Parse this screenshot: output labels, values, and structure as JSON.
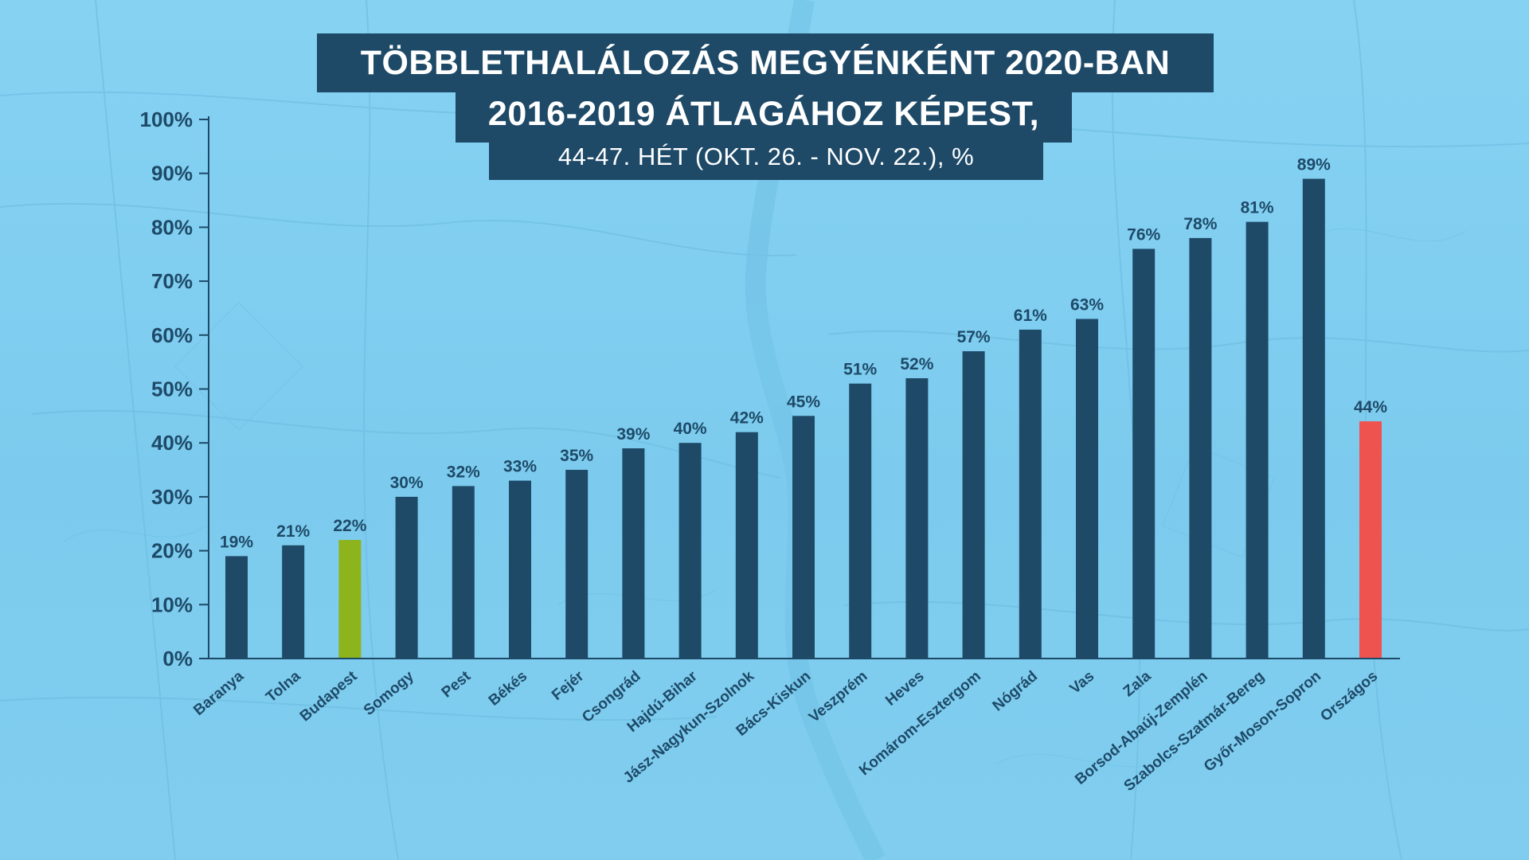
{
  "title": {
    "line1": "TÖBBLETHALÁLOZÁS MEGYÉNKÉNT 2020-BAN",
    "line2": "2016-2019 ÁTLAGÁHOZ KÉPEST,",
    "line3": "44-47. HÉT (OKT. 26. - NOV. 22.), %"
  },
  "colors": {
    "background": "#7ecdf0",
    "bar_default": "#1e4a68",
    "bar_budapest": "#8db41d",
    "bar_national": "#ef5350",
    "text": "#1e4a68",
    "axis": "#1e4a68"
  },
  "chart_data": {
    "type": "bar",
    "title": "TÖBBLETHALÁLOZÁS MEGYÉNKÉNT 2020-BAN 2016-2019 ÁTLAGÁHOZ KÉPEST, 44-47. HÉT (OKT. 26. - NOV. 22.), %",
    "categories": [
      "Baranya",
      "Tolna",
      "Budapest",
      "Somogy",
      "Pest",
      "Békés",
      "Fejér",
      "Csongrád",
      "Hajdú-Bihar",
      "Jász-Nagykun-Szolnok",
      "Bács-Kiskun",
      "Veszprém",
      "Heves",
      "Komárom-Esztergom",
      "Nógrád",
      "Vas",
      "Zala",
      "Borsod-Abaúj-Zemplén",
      "Szabolcs-Szatmár-Bereg",
      "Győr-Moson-Sopron",
      "Országos"
    ],
    "values": [
      19,
      21,
      22,
      30,
      32,
      33,
      35,
      39,
      40,
      42,
      45,
      51,
      52,
      57,
      61,
      63,
      76,
      78,
      81,
      89,
      44
    ],
    "value_labels": [
      "19%",
      "21%",
      "22%",
      "30%",
      "32%",
      "33%",
      "35%",
      "39%",
      "40%",
      "42%",
      "45%",
      "51%",
      "52%",
      "57%",
      "61%",
      "63%",
      "76%",
      "78%",
      "81%",
      "89%",
      "44%"
    ],
    "highlight": {
      "Budapest": "bar_budapest",
      "Országos": "bar_national"
    },
    "ylim": [
      0,
      100
    ],
    "yticks": [
      0,
      10,
      20,
      30,
      40,
      50,
      60,
      70,
      80,
      90,
      100
    ],
    "ytick_labels": [
      "0%",
      "10%",
      "20%",
      "30%",
      "40%",
      "50%",
      "60%",
      "70%",
      "80%",
      "90%",
      "100%"
    ],
    "xlabel": "",
    "ylabel": "",
    "grid": false,
    "legend": "none"
  }
}
